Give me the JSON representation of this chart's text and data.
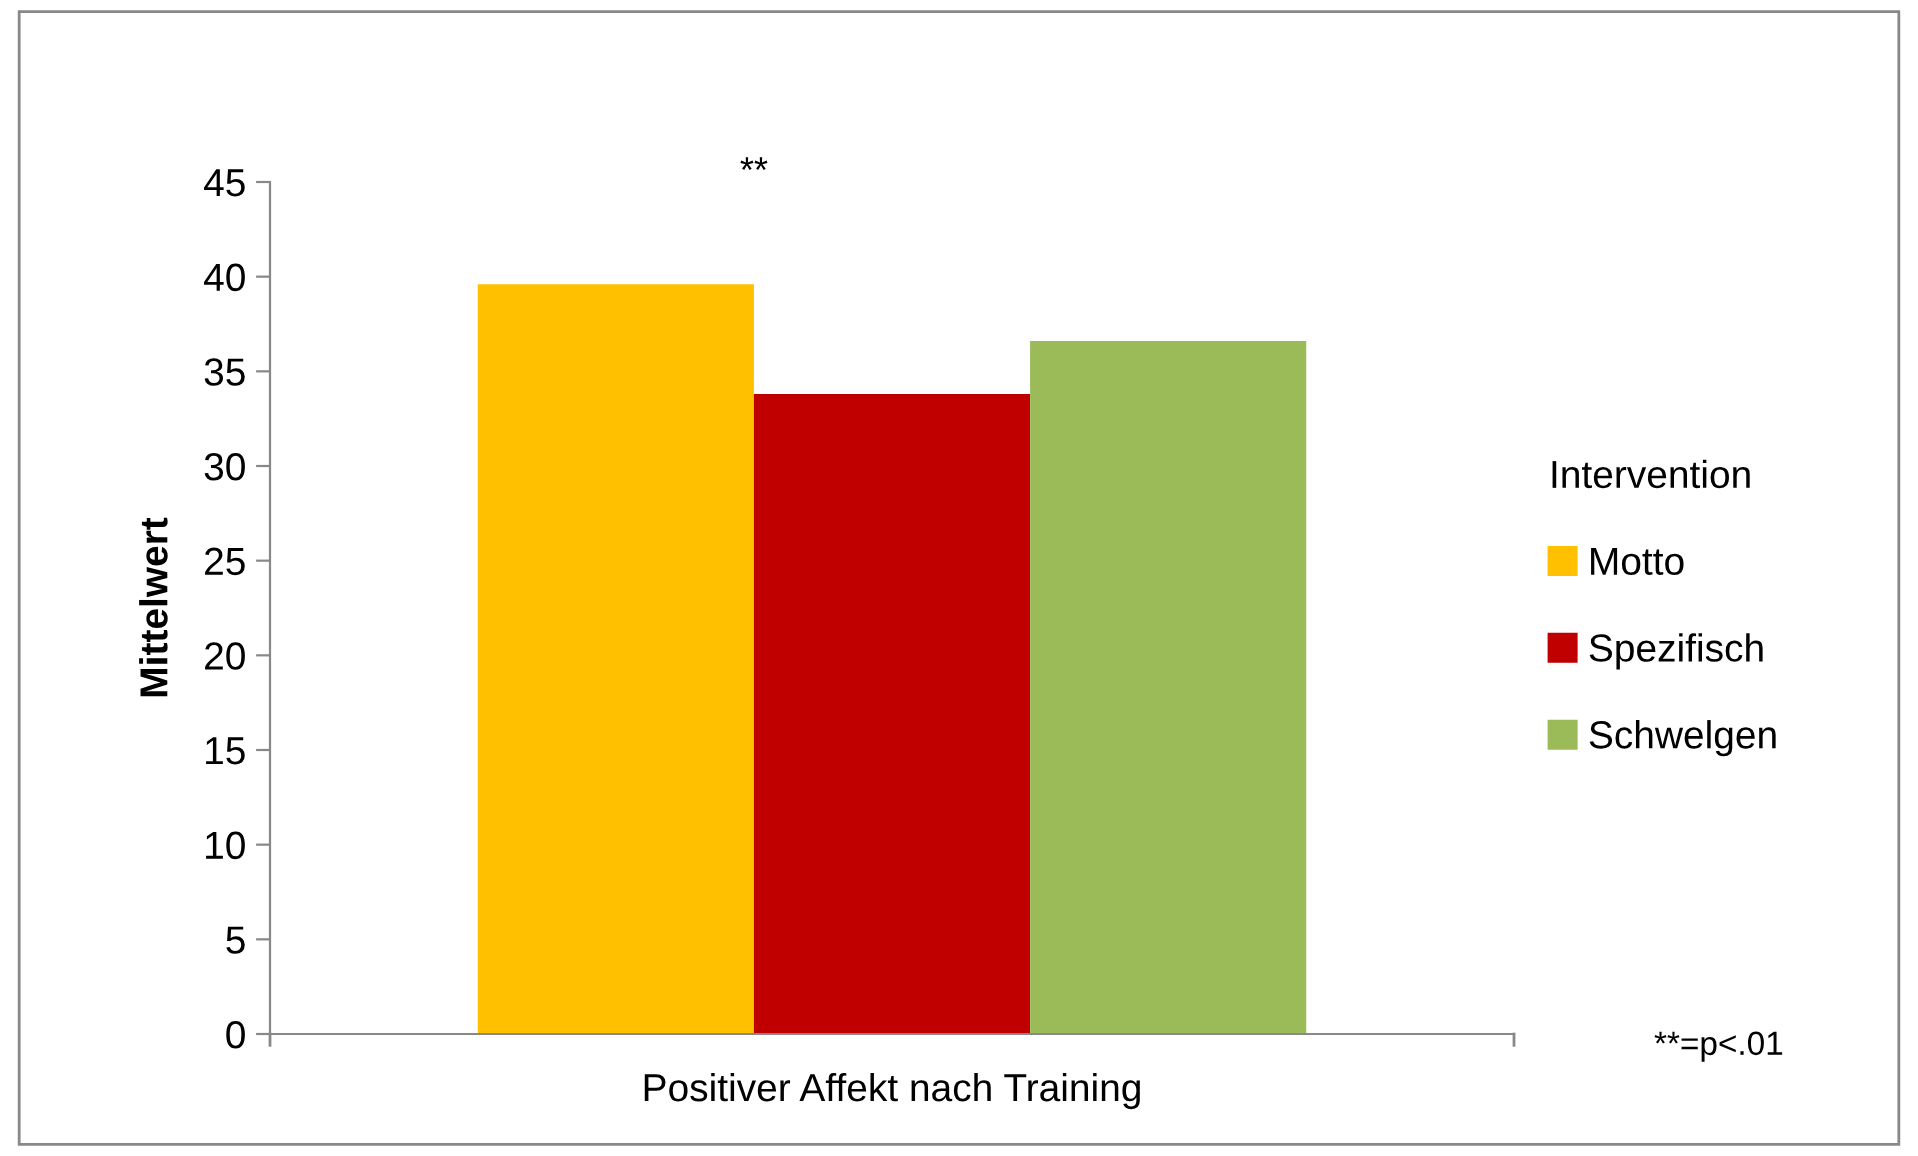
{
  "chart_data": {
    "type": "bar",
    "ylabel": "Mittelwert",
    "legend_title": "Intervention",
    "categories": [
      "Positiver Affekt nach Training"
    ],
    "series": [
      {
        "name": "Motto",
        "color": "#ffc000",
        "values": [
          39.6
        ]
      },
      {
        "name": "Spezifisch",
        "color": "#c00000",
        "values": [
          33.8
        ]
      },
      {
        "name": "Schwelgen",
        "color": "#9bbb59",
        "values": [
          36.6
        ]
      }
    ],
    "ylim": [
      0,
      45
    ],
    "yticks": [
      0,
      5,
      10,
      15,
      20,
      25,
      30,
      35,
      40,
      45
    ],
    "grid": false,
    "legend": "right",
    "annotations": [
      "**",
      "**=p<.01"
    ]
  }
}
